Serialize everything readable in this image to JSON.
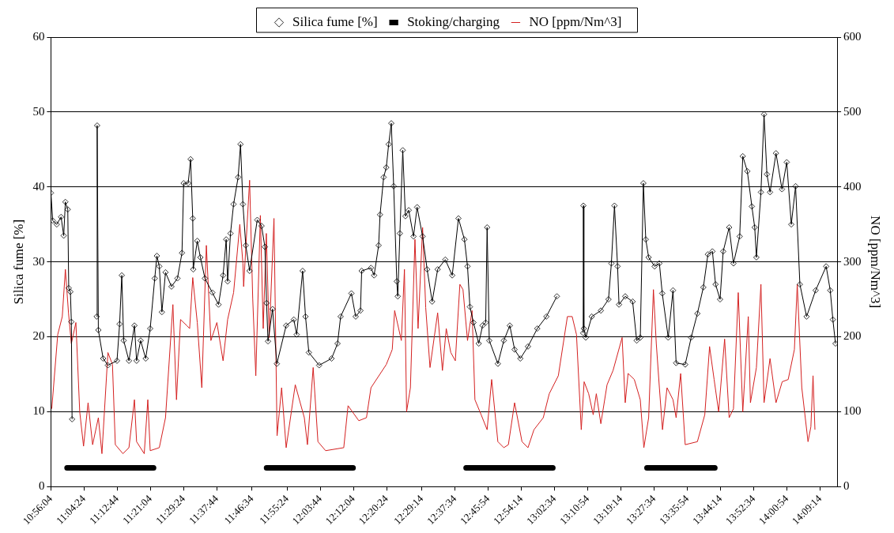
{
  "chart_data": {
    "type": "line",
    "ylabel": "Silica fume [%]",
    "y2label": "NO [ppm/Nm^3]",
    "legend": "top",
    "grid": "y",
    "line_style": "solid",
    "xlim": [
      10.9344,
      14.225
    ],
    "xticks": [
      {
        "value": 10.93444,
        "label": "10:56:04"
      },
      {
        "value": 11.07333,
        "label": "11:04:24"
      },
      {
        "value": 11.21222,
        "label": "11:12:44"
      },
      {
        "value": 11.35111,
        "label": "11:21:04"
      },
      {
        "value": 11.49,
        "label": "11:29:24"
      },
      {
        "value": 11.62889,
        "label": "11:37:44"
      },
      {
        "value": 11.77611,
        "label": "11:46:34"
      },
      {
        "value": 11.92333,
        "label": "11:55:24"
      },
      {
        "value": 12.06222,
        "label": "12:03:44"
      },
      {
        "value": 12.20111,
        "label": "12:12:04"
      },
      {
        "value": 12.34,
        "label": "12:20:24"
      },
      {
        "value": 12.48722,
        "label": "12:29:14"
      },
      {
        "value": 12.62611,
        "label": "12:37:34"
      },
      {
        "value": 12.765,
        "label": "12:45:54"
      },
      {
        "value": 12.90389,
        "label": "12:54:14"
      },
      {
        "value": 13.04278,
        "label": "13:02:34"
      },
      {
        "value": 13.18167,
        "label": "13:10:54"
      },
      {
        "value": 13.32056,
        "label": "13:19:14"
      },
      {
        "value": 13.45944,
        "label": "13:27:34"
      },
      {
        "value": 13.59833,
        "label": "13:35:54"
      },
      {
        "value": 13.73722,
        "label": "13:44:14"
      },
      {
        "value": 13.87611,
        "label": "13:52:34"
      },
      {
        "value": 14.015,
        "label": "14:00:54"
      },
      {
        "value": 14.15389,
        "label": "14:09:14"
      }
    ],
    "ylim": [
      0,
      60
    ],
    "yticks": [
      0,
      10,
      20,
      30,
      40,
      50,
      60
    ],
    "y2lim": [
      0,
      600
    ],
    "y2ticks": [
      0,
      100,
      200,
      300,
      400,
      500,
      600
    ],
    "series": [
      {
        "name": "Silica fume [%]",
        "color": "#000000",
        "marker": "diamond",
        "x": [
          10.9345,
          10.942,
          10.959,
          10.977,
          10.988,
          10.995,
          11.005,
          11.009,
          11.016,
          11.02,
          11.023,
          11.07,
          11.126,
          11.128,
          11.133,
          11.153,
          11.173,
          11.211,
          11.222,
          11.231,
          11.239,
          11.261,
          11.284,
          11.293,
          11.31,
          11.331,
          11.35,
          11.369,
          11.378,
          11.388,
          11.399,
          11.414,
          11.439,
          11.464,
          11.483,
          11.49,
          11.509,
          11.519,
          11.528,
          11.53,
          11.547,
          11.56,
          11.579,
          11.61,
          11.636,
          11.655,
          11.668,
          11.674,
          11.686,
          11.699,
          11.718,
          11.728,
          11.738,
          11.75,
          11.766,
          11.798,
          11.816,
          11.83,
          11.837,
          11.843,
          11.862,
          11.88,
          11.919,
          11.951,
          11.963,
          11.988,
          12.0,
          12.014,
          12.057,
          12.109,
          12.134,
          12.147,
          12.192,
          12.21,
          12.23,
          12.235,
          12.274,
          12.287,
          12.306,
          12.312,
          12.327,
          12.338,
          12.348,
          12.359,
          12.369,
          12.382,
          12.386,
          12.395,
          12.407,
          12.418,
          12.432,
          12.452,
          12.467,
          12.49,
          12.509,
          12.53,
          12.553,
          12.585,
          12.614,
          12.64,
          12.665,
          12.678,
          12.688,
          12.703,
          12.725,
          12.741,
          12.754,
          12.76,
          12.769,
          12.805,
          12.83,
          12.855,
          12.875,
          12.899,
          12.931,
          12.97,
          13.008,
          13.052,
          13.1,
          13.162,
          13.163,
          13.165,
          13.173,
          13.198,
          13.236,
          13.268,
          13.28,
          13.293,
          13.306,
          13.312,
          13.338,
          13.369,
          13.386,
          13.401,
          13.414,
          13.424,
          13.436,
          13.461,
          13.481,
          13.493,
          13.518,
          13.538,
          13.551,
          13.589,
          13.614,
          13.64,
          13.665,
          13.684,
          13.703,
          13.716,
          13.735,
          13.748,
          13.773,
          13.791,
          13.817,
          13.83,
          13.849,
          13.868,
          13.88,
          13.887,
          13.906,
          13.919,
          13.931,
          13.944,
          13.969,
          13.994,
          14.014,
          14.033,
          14.051,
          14.069,
          14.097,
          14.135,
          14.179,
          14.196,
          14.207,
          14.218
        ],
        "values": [
          39.2,
          35.5,
          35.0,
          36.0,
          33.5,
          38.0,
          37.0,
          26.5,
          26.0,
          22.0,
          9.0,
          null,
          22.7,
          48.2,
          20.9,
          17.1,
          16.2,
          16.8,
          21.7,
          28.2,
          19.5,
          16.8,
          21.5,
          16.8,
          19.5,
          17.1,
          21.1,
          27.8,
          30.8,
          29.4,
          23.3,
          28.6,
          26.7,
          27.8,
          31.2,
          40.5,
          40.5,
          43.7,
          35.8,
          29.0,
          32.8,
          30.6,
          27.8,
          25.9,
          24.3,
          28.2,
          33.0,
          27.4,
          33.8,
          37.7,
          41.3,
          45.7,
          37.7,
          32.2,
          28.8,
          35.6,
          34.8,
          32.0,
          24.5,
          19.4,
          23.7,
          16.4,
          21.5,
          22.3,
          20.3,
          28.8,
          22.7,
          17.9,
          16.2,
          17.1,
          19.1,
          22.7,
          25.8,
          22.7,
          23.5,
          28.8,
          29.2,
          28.2,
          32.2,
          36.3,
          41.3,
          42.6,
          45.7,
          48.5,
          40.1,
          27.4,
          25.4,
          33.8,
          44.9,
          36.1,
          36.9,
          33.4,
          37.3,
          33.4,
          29.0,
          24.7,
          29.0,
          30.3,
          28.2,
          35.8,
          33.0,
          29.4,
          24.0,
          21.9,
          19.1,
          21.5,
          21.9,
          34.6,
          19.5,
          16.4,
          19.5,
          21.5,
          18.3,
          17.1,
          18.7,
          21.1,
          22.7,
          25.4,
          null,
          20.5,
          37.5,
          21.1,
          19.9,
          22.7,
          23.5,
          25.0,
          29.8,
          37.5,
          29.4,
          24.3,
          25.4,
          24.7,
          19.5,
          19.9,
          40.5,
          33.0,
          30.6,
          29.4,
          29.8,
          25.8,
          19.9,
          26.2,
          16.5,
          16.3,
          19.9,
          23.1,
          26.6,
          31.0,
          31.4,
          27.0,
          25.0,
          31.4,
          34.6,
          29.8,
          33.4,
          44.1,
          42.1,
          37.4,
          34.6,
          30.6,
          39.3,
          49.7,
          41.7,
          39.3,
          44.5,
          39.7,
          43.3,
          35.0,
          40.1,
          27.0,
          22.7,
          26.2,
          29.4,
          26.2,
          22.3,
          19.1
        ]
      },
      {
        "name": "Stoking/charging",
        "color": "#000000",
        "marker": "none",
        "x": [
          11.002,
          11.364,
          11.6,
          11.837,
          12.199,
          12.4,
          12.672,
          13.035,
          13.2,
          13.429,
          13.713
        ],
        "values": [
          2.5,
          2.5,
          null,
          2.5,
          2.5,
          null,
          2.5,
          2.5,
          null,
          2.5,
          2.5
        ]
      },
      {
        "name": "NO [ppm/Nm^3]",
        "color": "#d42020",
        "marker": "none",
        "axis": "y2",
        "x": [
          10.938,
          10.963,
          10.982,
          10.995,
          11.008,
          11.02,
          11.039,
          11.055,
          11.071,
          11.09,
          11.109,
          11.133,
          11.148,
          11.173,
          11.192,
          11.204,
          11.236,
          11.261,
          11.284,
          11.293,
          11.325,
          11.34,
          11.35,
          11.388,
          11.414,
          11.445,
          11.46,
          11.477,
          11.503,
          11.515,
          11.528,
          11.547,
          11.566,
          11.585,
          11.604,
          11.629,
          11.655,
          11.674,
          11.699,
          11.725,
          11.738,
          11.741,
          11.766,
          11.779,
          11.792,
          11.811,
          11.823,
          11.836,
          11.848,
          11.868,
          11.881,
          11.9,
          11.919,
          11.957,
          11.995,
          12.008,
          12.032,
          12.052,
          12.084,
          12.16,
          12.178,
          12.223,
          12.255,
          12.274,
          12.338,
          12.363,
          12.373,
          12.401,
          12.414,
          12.423,
          12.439,
          12.458,
          12.471,
          12.49,
          12.503,
          12.521,
          12.553,
          12.573,
          12.589,
          12.608,
          12.627,
          12.646,
          12.659,
          12.678,
          12.697,
          12.709,
          12.735,
          12.76,
          12.779,
          12.805,
          12.83,
          12.849,
          12.875,
          12.906,
          12.931,
          12.956,
          12.995,
          13.02,
          13.058,
          13.096,
          13.116,
          13.134,
          13.154,
          13.166,
          13.185,
          13.204,
          13.217,
          13.236,
          13.262,
          13.287,
          13.325,
          13.338,
          13.35,
          13.376,
          13.401,
          13.416,
          13.436,
          13.456,
          13.468,
          13.481,
          13.494,
          13.513,
          13.538,
          13.551,
          13.57,
          13.589,
          13.64,
          13.671,
          13.691,
          13.71,
          13.729,
          13.754,
          13.773,
          13.791,
          13.811,
          13.83,
          13.853,
          13.862,
          13.887,
          13.906,
          13.919,
          13.944,
          13.969,
          13.995,
          14.02,
          14.046,
          14.058,
          14.077,
          14.103,
          14.115,
          14.124,
          14.132
        ],
        "values": [
          104,
          203,
          227,
          290,
          232,
          191,
          219,
          100,
          54,
          112,
          56,
          92,
          44,
          179,
          163,
          56,
          44,
          52,
          116,
          60,
          44,
          116,
          48,
          52,
          92,
          243,
          116,
          223,
          215,
          211,
          279,
          219,
          132,
          322,
          195,
          219,
          168,
          223,
          259,
          350,
          298,
          267,
          409,
          251,
          148,
          362,
          211,
          338,
          199,
          358,
          68,
          132,
          52,
          136,
          92,
          56,
          159,
          60,
          48,
          52,
          108,
          88,
          92,
          132,
          163,
          183,
          235,
          195,
          290,
          100,
          132,
          330,
          211,
          346,
          239,
          159,
          232,
          155,
          211,
          179,
          168,
          270,
          263,
          195,
          235,
          116,
          96,
          76,
          143,
          60,
          52,
          56,
          112,
          60,
          52,
          76,
          92,
          124,
          148,
          227,
          227,
          203,
          76,
          140,
          124,
          96,
          124,
          84,
          136,
          155,
          199,
          112,
          151,
          143,
          116,
          52,
          92,
          263,
          191,
          132,
          76,
          132,
          116,
          92,
          151,
          56,
          60,
          96,
          187,
          143,
          100,
          197,
          92,
          104,
          259,
          100,
          227,
          112,
          159,
          270,
          112,
          171,
          112,
          140,
          143,
          183,
          270,
          132,
          60,
          80,
          148,
          76
        ]
      }
    ]
  }
}
